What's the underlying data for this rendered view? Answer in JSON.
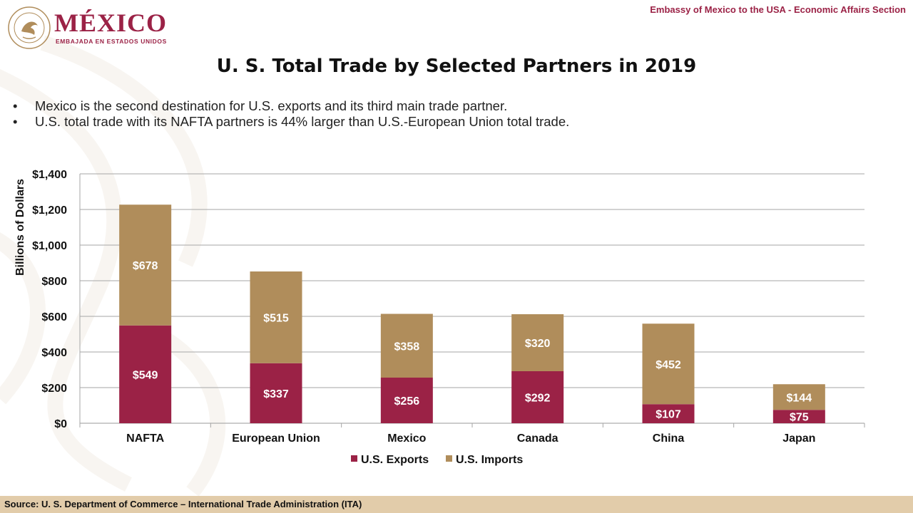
{
  "header": {
    "logo_word": "MÉXICO",
    "logo_sub": "EMBAJADA EN ESTADOS UNIDOS",
    "section_label": "Embassy of Mexico to the USA - Economic Affairs Section"
  },
  "title": "U. S. Total Trade by Selected Partners in 2019",
  "bullets": [
    "Mexico is the second destination for U.S. exports and its third main trade partner.",
    "U.S. total trade with its NAFTA partners is 44% larger than U.S.-European Union total trade."
  ],
  "colors": {
    "exports": "#9b2246",
    "imports": "#b08d5b",
    "brand": "#9b2246",
    "footer": "#e2ccaa"
  },
  "chart_data": {
    "type": "bar",
    "stacked": true,
    "categories": [
      "NAFTA",
      "European Union",
      "Mexico",
      "Canada",
      "China",
      "Japan"
    ],
    "series": [
      {
        "name": "U.S. Exports",
        "values": [
          549,
          337,
          256,
          292,
          107,
          75
        ],
        "labels": [
          "$549",
          "$337",
          "$256",
          "$292",
          "$107",
          "$75"
        ]
      },
      {
        "name": "U.S. Imports",
        "values": [
          678,
          515,
          358,
          320,
          452,
          144
        ],
        "labels": [
          "$678",
          "$515",
          "$358",
          "$320",
          "$452",
          "$144"
        ]
      }
    ],
    "ylabel": "Billions of Dollars",
    "ylim": [
      0,
      1400
    ],
    "yticks": [
      0,
      200,
      400,
      600,
      800,
      1000,
      1200,
      1400
    ],
    "ytick_labels": [
      "$0",
      "$200",
      "$400",
      "$600",
      "$800",
      "$1,000",
      "$1,200",
      "$1,400"
    ],
    "grid": true,
    "legend": "bottom"
  },
  "footer": {
    "source": "Source: U. S. Department of Commerce – International Trade Administration (ITA)"
  }
}
